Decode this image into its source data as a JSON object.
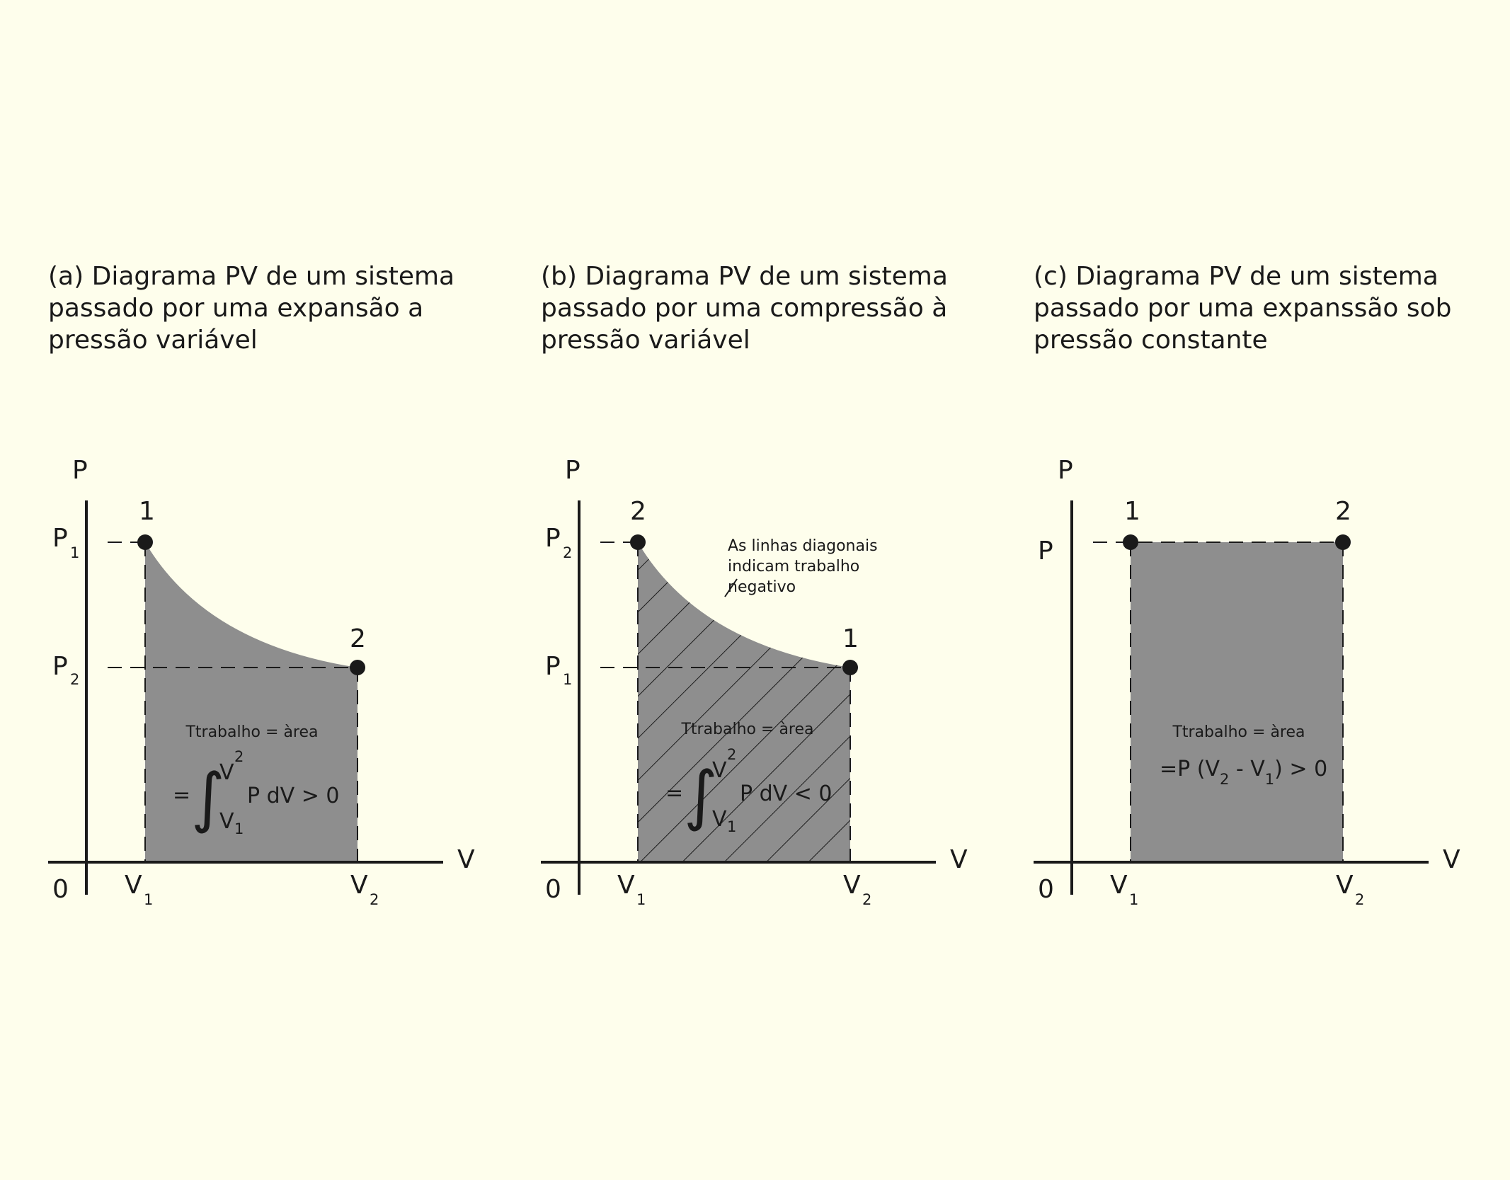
{
  "colors": {
    "background": "#fefeec",
    "area_fill": "#8e8e8e",
    "ink": "#1a1a1a"
  },
  "panels": [
    {
      "caption": [
        "(a) Diagrama PV de um sistema",
        "passado por uma expansão a",
        "pressão variável"
      ],
      "axis_p": "P",
      "axis_v": "V",
      "origin": "0",
      "p_tick_upper": "P",
      "p_tick_upper_sub": "1",
      "p_tick_lower": "P",
      "p_tick_lower_sub": "2",
      "v_tick_left": "V",
      "v_tick_left_sub": "1",
      "v_tick_right": "V",
      "v_tick_right_sub": "2",
      "point_left_label": "1",
      "point_right_label": "2",
      "work_label": "Ttrabalho = àrea",
      "integral_eq": "=",
      "integral_upper": "V",
      "integral_upper_sub": "2",
      "integral_lower": "V",
      "integral_lower_sub": "1",
      "integral_body": "P dV > 0"
    },
    {
      "caption": [
        "(b) Diagrama PV de um sistema",
        "passado por uma compressão à",
        "pressão variável"
      ],
      "axis_p": "P",
      "axis_v": "V",
      "origin": "0",
      "p_tick_upper": "P",
      "p_tick_upper_sub": "2",
      "p_tick_lower": "P",
      "p_tick_lower_sub": "1",
      "v_tick_left": "V",
      "v_tick_left_sub": "1",
      "v_tick_right": "V",
      "v_tick_right_sub": "2",
      "point_left_label": "2",
      "point_right_label": "1",
      "annotation": [
        "As  linhas diagonais",
        "indicam trabalho",
        "negativo"
      ],
      "work_label": "Ttrabalho = àrea",
      "integral_eq": "=",
      "integral_upper": "V",
      "integral_upper_sub": "2",
      "integral_lower": "V",
      "integral_lower_sub": "1",
      "integral_body": "P dV < 0"
    },
    {
      "caption": [
        "(c) Diagrama PV de um sistema",
        "passado por uma expanssão sob",
        "pressão constante"
      ],
      "axis_p": "P",
      "axis_v": "V",
      "origin": "0",
      "p_tick": "P",
      "v_tick_left": "V",
      "v_tick_left_sub": "1",
      "v_tick_right": "V",
      "v_tick_right_sub": "2",
      "point_left_label": "1",
      "point_right_label": "2",
      "work_label": "Ttrabalho = àrea",
      "formula_a": "=P (V",
      "formula_sub_a": "2",
      "formula_b": " - V",
      "formula_sub_b": "1",
      "formula_c": ") > 0"
    }
  ]
}
